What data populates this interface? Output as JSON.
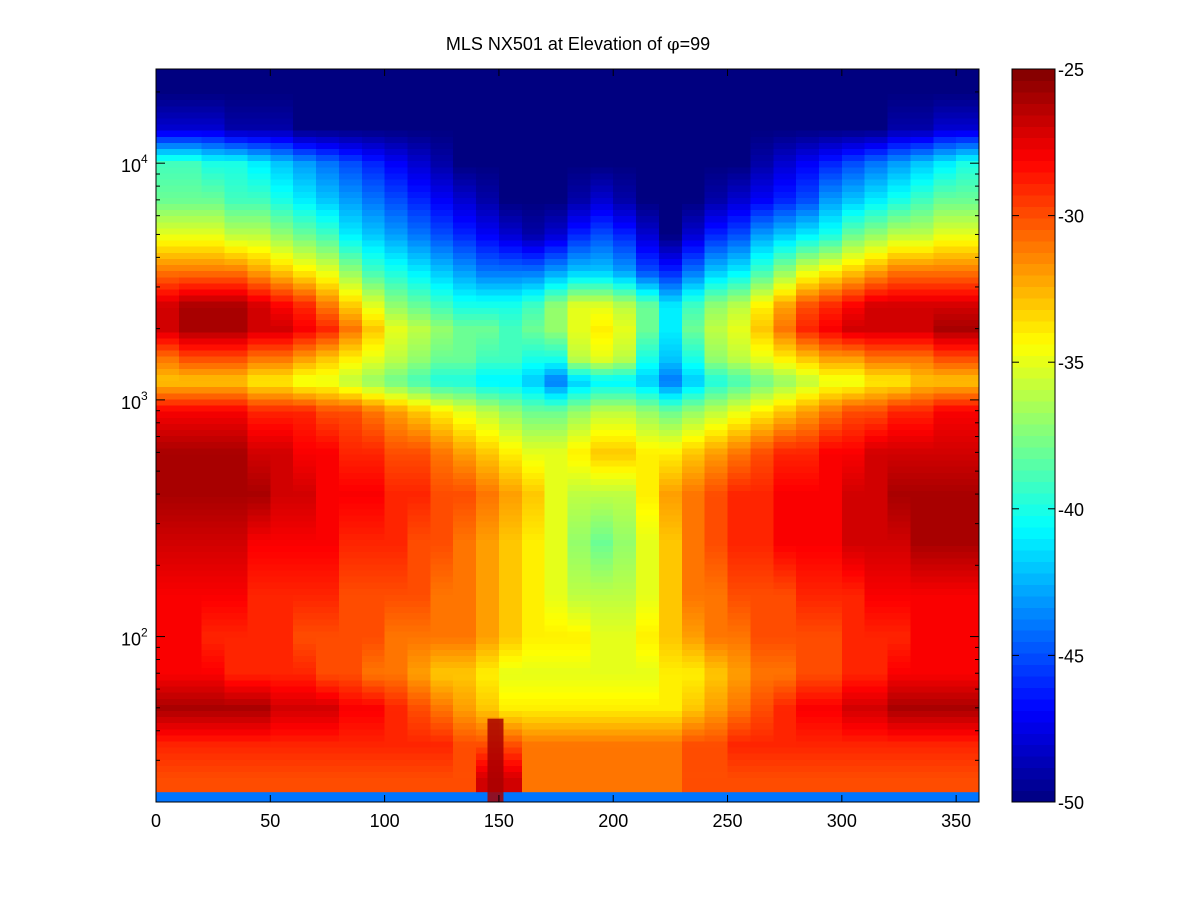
{
  "chart_data": {
    "type": "heatmap",
    "title": "MLS NX501 at Elevation of φ=99",
    "title_parts": [
      "MLS NX501 at Elevation of ",
      "φ",
      "=99"
    ],
    "xlabel": "",
    "ylabel": "",
    "x_scale": "linear",
    "y_scale": "log",
    "xlim": [
      0,
      360
    ],
    "ylim": [
      20,
      25000
    ],
    "x_ticks": [
      0,
      50,
      100,
      150,
      200,
      250,
      300,
      350
    ],
    "y_ticks": [
      {
        "value": 100,
        "base": "10",
        "exp": "2"
      },
      {
        "value": 1000,
        "base": "10",
        "exp": "3"
      },
      {
        "value": 10000,
        "base": "10",
        "exp": "4"
      }
    ],
    "colorbar": {
      "colormap": "jet",
      "range": [
        -50,
        -25
      ],
      "ticks": [
        -25,
        -30,
        -35,
        -40,
        -45,
        -50
      ],
      "tick_labels": [
        "-25",
        "-30",
        "-35",
        "-40",
        "-45",
        "-50"
      ]
    },
    "x": [
      5,
      15,
      25,
      35,
      45,
      55,
      65,
      75,
      85,
      95,
      105,
      115,
      125,
      135,
      145,
      155,
      165,
      175,
      185,
      195,
      205,
      215,
      225,
      235,
      245,
      255,
      265,
      275,
      285,
      295,
      305,
      315,
      325,
      335,
      345,
      355
    ],
    "y": [
      25,
      35,
      50,
      70,
      100,
      150,
      250,
      400,
      600,
      900,
      1200,
      1500,
      2000,
      2500,
      3500,
      5000,
      7000,
      10000,
      14000,
      20000
    ],
    "z": [
      [
        -30,
        -30,
        -30,
        -30,
        -30,
        -30,
        -30,
        -30,
        -30,
        -30,
        -30,
        -30,
        -30,
        -30,
        -27,
        -27,
        -31,
        -31,
        -31,
        -31,
        -31,
        -31,
        -31,
        -30,
        -30,
        -30,
        -30,
        -30,
        -30,
        -30,
        -30,
        -30,
        -30,
        -30,
        -30,
        -30
      ],
      [
        -29,
        -29,
        -29,
        -29,
        -29,
        -29,
        -29,
        -29,
        -29,
        -29,
        -29,
        -29,
        -29,
        -30,
        -30,
        -30,
        -31,
        -31,
        -31,
        -31,
        -31,
        -31,
        -31,
        -30,
        -30,
        -29,
        -29,
        -29,
        -29,
        -29,
        -29,
        -29,
        -29,
        -29,
        -29,
        -29
      ],
      [
        -26,
        -26,
        -26,
        -26,
        -26,
        -27,
        -27,
        -27,
        -28,
        -28,
        -29,
        -30,
        -31,
        -32,
        -33,
        -34,
        -34,
        -34,
        -34,
        -34,
        -34,
        -34,
        -34,
        -33,
        -32,
        -31,
        -30,
        -29,
        -28,
        -28,
        -27,
        -27,
        -26,
        -26,
        -26,
        -26
      ],
      [
        -28,
        -28,
        -28,
        -29,
        -29,
        -29,
        -29,
        -30,
        -30,
        -31,
        -31,
        -32,
        -33,
        -33,
        -34,
        -35,
        -35,
        -35,
        -35,
        -35,
        -35,
        -35,
        -34,
        -34,
        -33,
        -32,
        -31,
        -31,
        -30,
        -30,
        -29,
        -29,
        -28,
        -28,
        -28,
        -28
      ],
      [
        -28,
        -28,
        -29,
        -29,
        -29,
        -29,
        -30,
        -30,
        -30,
        -30,
        -31,
        -31,
        -31,
        -31,
        -32,
        -33,
        -34,
        -34,
        -34,
        -35,
        -35,
        -34,
        -33,
        -32,
        -31,
        -31,
        -30,
        -30,
        -30,
        -30,
        -29,
        -29,
        -29,
        -28,
        -28,
        -28
      ],
      [
        -28,
        -28,
        -28,
        -28,
        -29,
        -29,
        -29,
        -29,
        -30,
        -30,
        -30,
        -30,
        -31,
        -31,
        -32,
        -33,
        -34,
        -35,
        -36,
        -36,
        -36,
        -35,
        -33,
        -31,
        -31,
        -30,
        -30,
        -30,
        -29,
        -29,
        -29,
        -28,
        -28,
        -28,
        -28,
        -28
      ],
      [
        -27,
        -27,
        -27,
        -27,
        -28,
        -28,
        -28,
        -28,
        -29,
        -29,
        -29,
        -30,
        -30,
        -31,
        -32,
        -33,
        -34,
        -35,
        -37,
        -38,
        -37,
        -35,
        -33,
        -31,
        -30,
        -29,
        -29,
        -28,
        -28,
        -28,
        -27,
        -27,
        -27,
        -26,
        -26,
        -26
      ],
      [
        -26,
        -26,
        -26,
        -26,
        -26,
        -27,
        -27,
        -28,
        -28,
        -28,
        -29,
        -29,
        -30,
        -30,
        -31,
        -32,
        -33,
        -35,
        -36,
        -36,
        -36,
        -34,
        -32,
        -31,
        -30,
        -29,
        -29,
        -28,
        -28,
        -28,
        -27,
        -27,
        -26,
        -26,
        -26,
        -26
      ],
      [
        -26,
        -26,
        -26,
        -26,
        -27,
        -27,
        -28,
        -28,
        -29,
        -29,
        -30,
        -30,
        -31,
        -32,
        -33,
        -34,
        -35,
        -35,
        -34,
        -33,
        -33,
        -34,
        -34,
        -33,
        -32,
        -31,
        -30,
        -29,
        -29,
        -28,
        -28,
        -27,
        -27,
        -27,
        -27,
        -27
      ],
      [
        -28,
        -28,
        -28,
        -28,
        -29,
        -29,
        -29,
        -30,
        -30,
        -31,
        -32,
        -33,
        -34,
        -35,
        -36,
        -37,
        -38,
        -38,
        -37,
        -36,
        -36,
        -37,
        -38,
        -37,
        -36,
        -35,
        -34,
        -33,
        -32,
        -31,
        -30,
        -30,
        -29,
        -29,
        -28,
        -28
      ],
      [
        -33,
        -33,
        -33,
        -33,
        -34,
        -34,
        -35,
        -35,
        -36,
        -37,
        -38,
        -39,
        -40,
        -40,
        -41,
        -41,
        -42,
        -44,
        -42,
        -41,
        -41,
        -42,
        -44,
        -42,
        -40,
        -39,
        -38,
        -37,
        -36,
        -35,
        -35,
        -34,
        -34,
        -33,
        -33,
        -33
      ],
      [
        -31,
        -30,
        -30,
        -30,
        -31,
        -31,
        -32,
        -33,
        -34,
        -35,
        -36,
        -37,
        -38,
        -38,
        -39,
        -39,
        -40,
        -40,
        -36,
        -35,
        -36,
        -40,
        -42,
        -40,
        -37,
        -36,
        -35,
        -34,
        -33,
        -32,
        -32,
        -31,
        -31,
        -31,
        -30,
        -30
      ],
      [
        -27,
        -26,
        -26,
        -26,
        -27,
        -27,
        -28,
        -29,
        -31,
        -33,
        -35,
        -36,
        -37,
        -38,
        -38,
        -39,
        -38,
        -37,
        -35,
        -34,
        -35,
        -38,
        -41,
        -38,
        -36,
        -35,
        -33,
        -31,
        -29,
        -28,
        -27,
        -27,
        -27,
        -27,
        -26,
        -26
      ],
      [
        -27,
        -26,
        -26,
        -26,
        -27,
        -28,
        -29,
        -31,
        -33,
        -35,
        -37,
        -38,
        -39,
        -40,
        -40,
        -40,
        -39,
        -37,
        -35,
        -35,
        -36,
        -38,
        -41,
        -39,
        -37,
        -36,
        -34,
        -32,
        -30,
        -29,
        -28,
        -27,
        -27,
        -27,
        -27,
        -27
      ],
      [
        -31,
        -31,
        -31,
        -31,
        -32,
        -33,
        -34,
        -35,
        -37,
        -39,
        -40,
        -41,
        -42,
        -43,
        -44,
        -44,
        -44,
        -43,
        -42,
        -42,
        -43,
        -45,
        -46,
        -44,
        -42,
        -41,
        -39,
        -37,
        -35,
        -34,
        -33,
        -32,
        -31,
        -31,
        -31,
        -31
      ],
      [
        -35,
        -35,
        -35,
        -36,
        -36,
        -37,
        -38,
        -39,
        -41,
        -42,
        -43,
        -44,
        -45,
        -46,
        -47,
        -48,
        -49,
        -48,
        -46,
        -45,
        -46,
        -48,
        -50,
        -48,
        -46,
        -45,
        -43,
        -42,
        -41,
        -40,
        -38,
        -37,
        -36,
        -36,
        -35,
        -35
      ],
      [
        -38,
        -38,
        -38,
        -39,
        -39,
        -40,
        -41,
        -42,
        -43,
        -44,
        -45,
        -46,
        -47,
        -48,
        -49,
        -50,
        -50,
        -50,
        -49,
        -48,
        -49,
        -50,
        -50,
        -50,
        -49,
        -48,
        -47,
        -46,
        -45,
        -43,
        -42,
        -41,
        -40,
        -39,
        -38,
        -38
      ],
      [
        -39,
        -39,
        -40,
        -40,
        -41,
        -42,
        -43,
        -44,
        -45,
        -46,
        -47,
        -48,
        -49,
        -50,
        -50,
        -50,
        -50,
        -50,
        -50,
        -50,
        -50,
        -50,
        -50,
        -50,
        -50,
        -50,
        -49,
        -48,
        -47,
        -46,
        -45,
        -44,
        -43,
        -42,
        -41,
        -40
      ],
      [
        -48,
        -48,
        -48,
        -49,
        -49,
        -49,
        -50,
        -50,
        -50,
        -50,
        -50,
        -50,
        -50,
        -50,
        -50,
        -50,
        -50,
        -50,
        -50,
        -50,
        -50,
        -50,
        -50,
        -50,
        -50,
        -50,
        -50,
        -50,
        -50,
        -50,
        -50,
        -50,
        -49,
        -49,
        -48,
        -48
      ],
      [
        -50,
        -50,
        -50,
        -50,
        -50,
        -50,
        -50,
        -50,
        -50,
        -50,
        -50,
        -50,
        -50,
        -50,
        -50,
        -50,
        -50,
        -50,
        -50,
        -50,
        -50,
        -50,
        -50,
        -50,
        -50,
        -50,
        -50,
        -50,
        -50,
        -50,
        -50,
        -50,
        -50,
        -50,
        -50,
        -50
      ]
    ],
    "floor_band": {
      "y_range": [
        20,
        22
      ],
      "value": -44,
      "hot_x_range": [
        145,
        152
      ],
      "hot_value": -26
    }
  }
}
